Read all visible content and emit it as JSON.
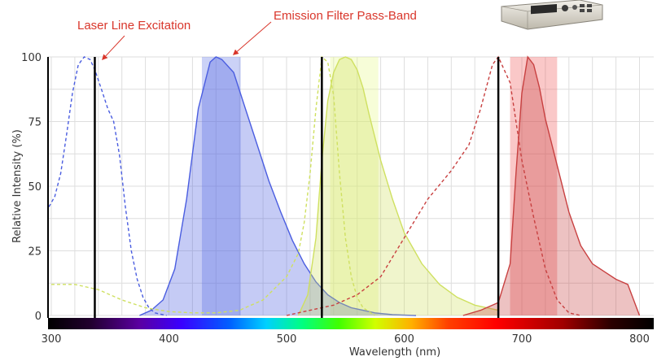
{
  "chart_data": {
    "type": "area",
    "xlabel": "Wavelength (nm)",
    "ylabel": "Relative Intensity (%)",
    "xlim": [
      290,
      805
    ],
    "ylim": [
      0,
      100
    ],
    "x_ticks": [
      300,
      400,
      500,
      600,
      700,
      800
    ],
    "y_ticks": [
      0,
      25,
      50,
      75,
      100
    ],
    "grid": true,
    "annotations": [
      {
        "text": "Laser Line Excitation",
        "target_x": 337,
        "target_y": 100
      },
      {
        "text": "Emission Filter Pass-Band",
        "target_x": 452,
        "target_y": 100
      }
    ],
    "laser_lines": [
      {
        "x": 337
      },
      {
        "x": 530
      },
      {
        "x": 680
      }
    ],
    "filter_bands": [
      {
        "x0": 428,
        "x1": 461,
        "color": "#6b7fe8"
      },
      {
        "x0": 537,
        "x1": 578,
        "color": "#e8f890"
      },
      {
        "x0": 690,
        "x1": 730,
        "color": "#f06060"
      }
    ],
    "series": [
      {
        "kind": "excitation",
        "color": "#4a5de0",
        "x": [
          290,
          298,
          303,
          308,
          313,
          318,
          323,
          328,
          333,
          337,
          343,
          348,
          353,
          358,
          363,
          368,
          373,
          378,
          383,
          388,
          393,
          398
        ],
        "y": [
          40,
          42,
          46,
          55,
          70,
          86,
          97,
          100,
          99,
          95,
          87,
          80,
          75,
          62,
          42,
          25,
          14,
          7,
          3,
          1,
          0.5,
          0
        ]
      },
      {
        "kind": "emission",
        "color": "#4a5de0",
        "x": [
          375,
          385,
          395,
          405,
          415,
          425,
          435,
          440,
          445,
          455,
          465,
          475,
          485,
          495,
          505,
          515,
          525,
          535,
          545,
          555,
          565,
          575,
          590,
          610
        ],
        "y": [
          0,
          2,
          6,
          18,
          45,
          80,
          98,
          100,
          99,
          94,
          80,
          66,
          52,
          40,
          29,
          20,
          13,
          8,
          5,
          3,
          2,
          1,
          0.3,
          0
        ]
      },
      {
        "kind": "excitation",
        "color": "#cfe060",
        "x": [
          290,
          295,
          300,
          310,
          320,
          330,
          340,
          350,
          360,
          380,
          400,
          420,
          440,
          460,
          480,
          500,
          510,
          515,
          520,
          525,
          530,
          535,
          540,
          545,
          550,
          555,
          560,
          565,
          575
        ],
        "y": [
          19,
          16,
          12,
          12,
          12,
          11,
          10,
          8,
          6,
          3,
          1.5,
          1,
          1,
          2,
          6,
          15,
          24,
          36,
          55,
          80,
          100,
          98,
          85,
          55,
          30,
          15,
          7,
          3,
          0
        ]
      },
      {
        "kind": "emission",
        "color": "#cfe060",
        "x": [
          510,
          518,
          525,
          530,
          535,
          540,
          545,
          550,
          555,
          560,
          565,
          570,
          580,
          590,
          600,
          615,
          630,
          645,
          660,
          680
        ],
        "y": [
          0,
          8,
          30,
          60,
          83,
          94,
          99,
          100,
          99,
          95,
          88,
          78,
          60,
          45,
          32,
          20,
          12,
          7,
          4,
          2
        ]
      },
      {
        "kind": "excitation",
        "color": "#c84040",
        "x": [
          500,
          520,
          540,
          560,
          580,
          600,
          620,
          640,
          655,
          665,
          675,
          680,
          690,
          700,
          710,
          720,
          730,
          740,
          750
        ],
        "y": [
          0,
          2,
          4,
          8,
          15,
          30,
          45,
          56,
          66,
          80,
          97,
          100,
          90,
          60,
          38,
          18,
          6,
          1,
          0
        ]
      },
      {
        "kind": "emission",
        "color": "#c84040",
        "x": [
          650,
          665,
          680,
          690,
          695,
          700,
          705,
          710,
          715,
          720,
          730,
          740,
          750,
          760,
          770,
          780,
          790,
          800
        ],
        "y": [
          0,
          2,
          5,
          20,
          55,
          86,
          100,
          97,
          88,
          76,
          58,
          40,
          27,
          20,
          17,
          14,
          12,
          0
        ]
      }
    ]
  }
}
